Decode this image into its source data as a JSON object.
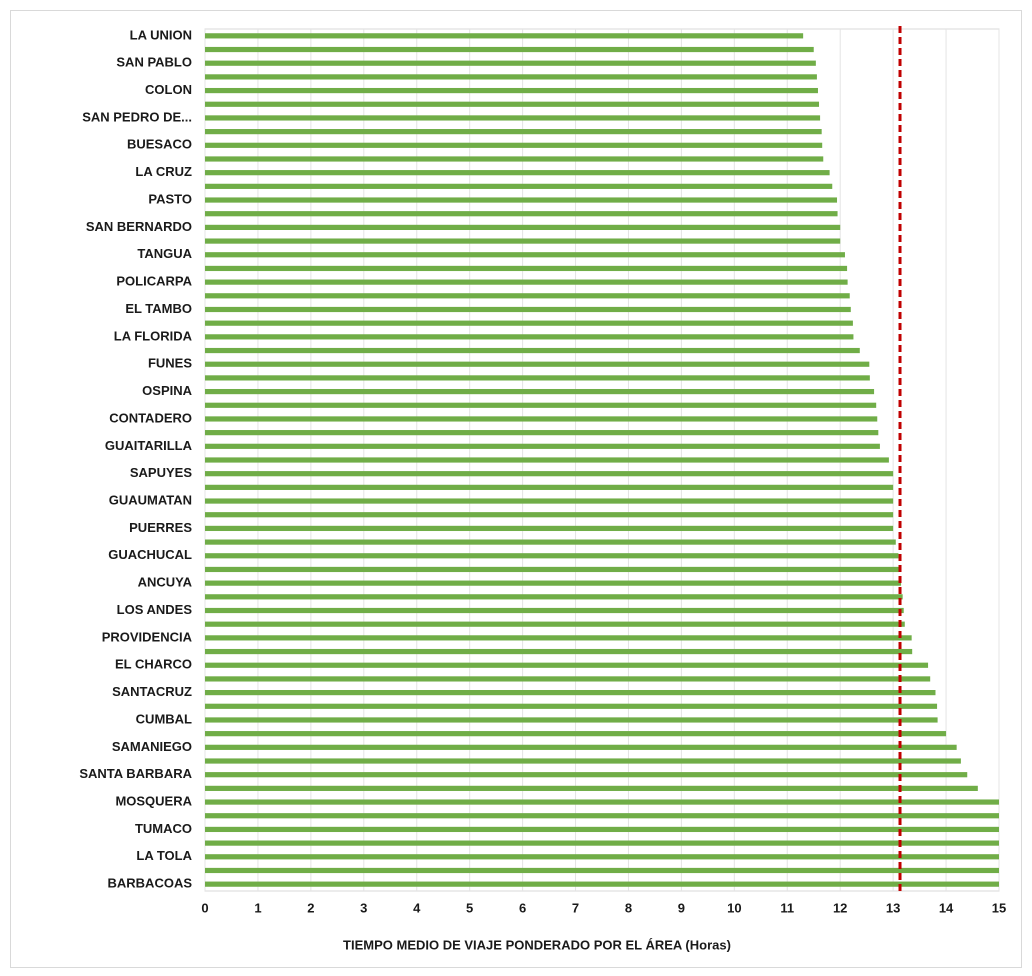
{
  "chart_data": {
    "type": "hbar",
    "xlabel": "TIEMPO MEDIO DE VIAJE  PONDERADO POR  EL ÁREA (Horas)",
    "categories": [
      "LA UNION",
      null,
      "SAN PABLO",
      null,
      "COLON",
      null,
      "SAN PEDRO DE...",
      null,
      "BUESACO",
      null,
      "LA CRUZ",
      null,
      "PASTO",
      null,
      "SAN BERNARDO",
      null,
      "TANGUA",
      null,
      "POLICARPA",
      null,
      "EL TAMBO",
      null,
      "LA FLORIDA",
      null,
      "FUNES",
      null,
      "OSPINA",
      null,
      "CONTADERO",
      null,
      "GUAITARILLA",
      null,
      "SAPUYES",
      null,
      "GUAUMATAN",
      null,
      "PUERRES",
      null,
      "GUACHUCAL",
      null,
      "ANCUYA",
      null,
      "LOS ANDES",
      null,
      "PROVIDENCIA",
      null,
      "EL CHARCO",
      null,
      "SANTACRUZ",
      null,
      "CUMBAL",
      null,
      "SAMANIEGO",
      null,
      "SANTA BARBARA",
      null,
      "MOSQUERA",
      null,
      "TUMACO",
      null,
      "LA TOLA",
      null,
      "BARBACOAS"
    ],
    "values": [
      11.3,
      11.5,
      11.54,
      11.56,
      11.58,
      11.6,
      11.62,
      11.65,
      11.66,
      11.68,
      11.8,
      11.85,
      11.94,
      11.95,
      12.0,
      12.0,
      12.09,
      12.13,
      12.14,
      12.18,
      12.2,
      12.24,
      12.25,
      12.37,
      12.55,
      12.56,
      12.64,
      12.68,
      12.7,
      12.72,
      12.75,
      12.92,
      13.0,
      13.0,
      13.0,
      13.0,
      13.0,
      13.05,
      13.1,
      13.11,
      13.15,
      13.18,
      13.2,
      13.22,
      13.35,
      13.36,
      13.66,
      13.7,
      13.8,
      13.83,
      13.84,
      14.0,
      14.2,
      14.28,
      14.4,
      14.6,
      15,
      15,
      15,
      15,
      15,
      15,
      15
    ],
    "color": "#70ad47",
    "xlim": [
      0,
      15
    ],
    "xticks": [
      0,
      1,
      2,
      3,
      4,
      5,
      6,
      7,
      8,
      9,
      10,
      11,
      12,
      13,
      14,
      15
    ],
    "grid": true,
    "reference_line": 13.13,
    "reference_color": "#c00000"
  }
}
